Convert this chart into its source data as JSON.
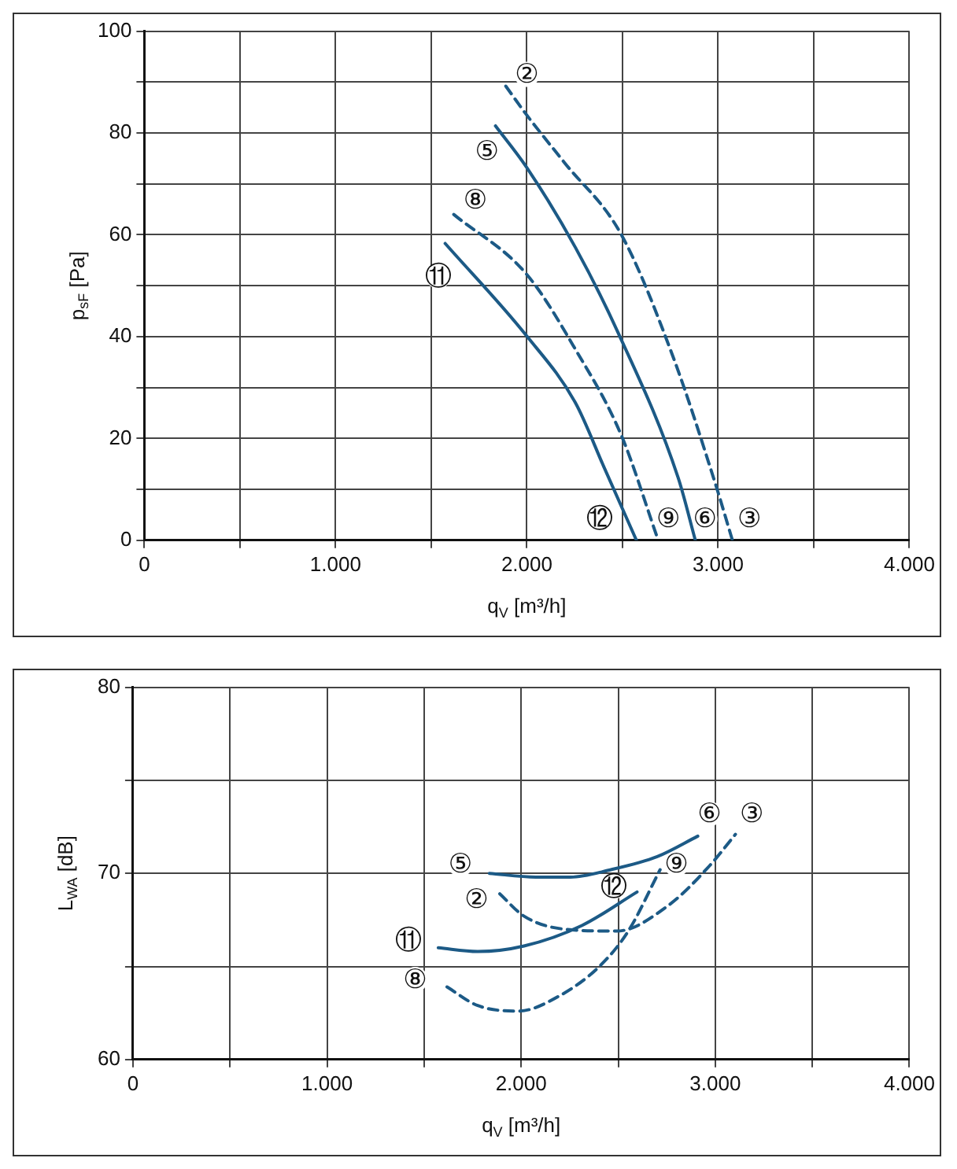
{
  "chart_data": [
    {
      "type": "line",
      "xlabel": "q$_{V}$ [m³/h]",
      "ylabel": "p$_{sF}$ [Pa]",
      "xlim": [
        0,
        4000
      ],
      "xticks": [
        0,
        {
          "value": 500,
          "label": null
        },
        {
          "value": 1000,
          "label": "1.000"
        },
        {
          "value": 1500,
          "label": null
        },
        {
          "value": 2000,
          "label": "2.000"
        },
        {
          "value": 2500,
          "label": null
        },
        {
          "value": 3000,
          "label": "3.000"
        },
        {
          "value": 3500,
          "label": null
        },
        {
          "value": 4000,
          "label": "4.000"
        }
      ],
      "ylim": [
        0,
        100
      ],
      "yticks": [
        0,
        {
          "value": 10,
          "label": null
        },
        20,
        {
          "value": 30,
          "label": null
        },
        40,
        {
          "value": 50,
          "label": null
        },
        60,
        {
          "value": 70,
          "label": null
        },
        80,
        {
          "value": 90,
          "label": null
        },
        100
      ],
      "grid": true,
      "legend": false,
      "marker": "none",
      "series": [
        {
          "color": "#1c5a86",
          "line_style": "dashed",
          "x": [
            1890,
            2000,
            2194,
            2493,
            2761,
            2985,
            3075
          ],
          "values": [
            89.2,
            83.5,
            74.3,
            60.1,
            36.4,
            11.2,
            0
          ]
        },
        {
          "color": "#1c5a86",
          "line_style": "solid",
          "x": [
            1836,
            2000,
            2254,
            2478,
            2791,
            2881
          ],
          "values": [
            81.4,
            73.2,
            57.5,
            40.7,
            12.3,
            0
          ]
        },
        {
          "color": "#1c5a86",
          "line_style": "dashed",
          "x": [
            1618,
            2000,
            2254,
            2493,
            2687
          ],
          "values": [
            64,
            52.2,
            37.5,
            20.7,
            0
          ]
        },
        {
          "color": "#1c5a86",
          "line_style": "solid",
          "x": [
            1573,
            2000,
            2254,
            2403,
            2573
          ],
          "values": [
            58.3,
            40.1,
            27,
            14.4,
            0
          ]
        }
      ],
      "annotations": [
        {
          "text": "②",
          "x": 2000,
          "y": 91.5
        },
        {
          "text": "⑤",
          "x": 1791,
          "y": 76.4
        },
        {
          "text": "⑧",
          "x": 1731,
          "y": 66.9
        },
        {
          "text": "⑪",
          "x": 1537,
          "y": 51.9
        },
        {
          "text": "⑫",
          "x": 2379,
          "y": 4.2
        },
        {
          "text": "⑨",
          "x": 2740,
          "y": 4.2
        },
        {
          "text": "⑥",
          "x": 2931,
          "y": 4.2
        },
        {
          "text": "③",
          "x": 3164,
          "y": 4.2
        }
      ]
    },
    {
      "type": "line",
      "xlabel": "q$_{V}$ [m³/h]",
      "ylabel": "L$_{WA}$ [dB]",
      "xlim": [
        0,
        4000
      ],
      "xticks": [
        0,
        {
          "value": 500,
          "label": null
        },
        {
          "value": 1000,
          "label": "1.000"
        },
        {
          "value": 1500,
          "label": null
        },
        {
          "value": 2000,
          "label": "2.000"
        },
        {
          "value": 2500,
          "label": null
        },
        {
          "value": 3000,
          "label": "3.000"
        },
        {
          "value": 3500,
          "label": null
        },
        {
          "value": 4000,
          "label": "4.000"
        }
      ],
      "ylim": [
        60,
        80
      ],
      "yticks": [
        60,
        {
          "value": 65,
          "label": null
        },
        70,
        {
          "value": 75,
          "label": null
        },
        80
      ],
      "grid": true,
      "legend": false,
      "marker": "none",
      "series": [
        {
          "color": "#1c5a86",
          "line_style": "dashed",
          "x": [
            1890,
            2015,
            2224,
            2493,
            2761,
            2970,
            3104
          ],
          "values": [
            68.9,
            67.7,
            67,
            66.9,
            68.3,
            70.4,
            72.1
          ]
        },
        {
          "color": "#1c5a86",
          "line_style": "solid",
          "x": [
            1836,
            2075,
            2254,
            2463,
            2701,
            2910
          ],
          "values": [
            70,
            69.8,
            69.8,
            70.2,
            70.9,
            72
          ]
        },
        {
          "color": "#1c5a86",
          "line_style": "dashed",
          "x": [
            1618,
            1776,
            1985,
            2194,
            2403,
            2552,
            2716
          ],
          "values": [
            63.9,
            62.9,
            62.6,
            63.4,
            65,
            66.9,
            70.2
          ]
        },
        {
          "color": "#1c5a86",
          "line_style": "solid",
          "x": [
            1573,
            1776,
            2015,
            2313,
            2597
          ],
          "values": [
            66,
            65.8,
            66.1,
            67.2,
            69
          ]
        }
      ],
      "annotations": [
        {
          "text": "⑥",
          "x": 2970,
          "y": 73.2
        },
        {
          "text": "③",
          "x": 3188,
          "y": 73.2
        },
        {
          "text": "⑤",
          "x": 1687,
          "y": 70.5
        },
        {
          "text": "⑨",
          "x": 2800,
          "y": 70.5
        },
        {
          "text": "⑫",
          "x": 2478,
          "y": 69.3
        },
        {
          "text": "②",
          "x": 1770,
          "y": 68.6
        },
        {
          "text": "⑪",
          "x": 1418,
          "y": 66.4
        },
        {
          "text": "⑧",
          "x": 1454,
          "y": 64.3
        }
      ]
    }
  ]
}
